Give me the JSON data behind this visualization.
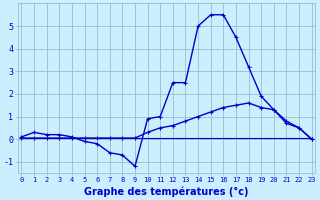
{
  "xlabel": "Graphe des températures (°c)",
  "hours": [
    0,
    1,
    2,
    3,
    4,
    5,
    6,
    7,
    8,
    9,
    10,
    11,
    12,
    13,
    14,
    15,
    16,
    17,
    18,
    19,
    20,
    21,
    22,
    23
  ],
  "line1": [
    0.1,
    0.3,
    0.2,
    0.2,
    0.1,
    -0.1,
    -0.2,
    -0.6,
    -0.7,
    -1.2,
    0.9,
    1.0,
    2.5,
    2.5,
    5.0,
    5.5,
    5.5,
    4.5,
    3.2,
    1.9,
    1.3,
    0.7,
    0.5,
    0.0
  ],
  "line2": [
    0.05,
    0.05,
    0.05,
    0.05,
    0.05,
    0.05,
    0.05,
    0.05,
    0.05,
    0.05,
    0.3,
    0.5,
    0.6,
    0.8,
    1.0,
    1.2,
    1.4,
    1.5,
    1.6,
    1.4,
    1.3,
    0.8,
    0.5,
    0.0
  ],
  "line3": [
    0.05,
    0.05,
    0.05,
    0.05,
    0.05,
    0.05,
    0.05,
    0.05,
    0.05,
    0.05,
    0.05,
    0.05,
    0.05,
    0.05,
    0.05,
    0.05,
    0.05,
    0.05,
    0.05,
    0.05,
    0.05,
    0.05,
    0.05,
    0.05
  ],
  "ylim": [
    -1.5,
    6.0
  ],
  "yticks": [
    -1,
    0,
    1,
    2,
    3,
    4,
    5
  ],
  "background_color": "#cceeff",
  "grid_color": "#99bbcc",
  "line_color": "#0000cc",
  "marker": "+"
}
